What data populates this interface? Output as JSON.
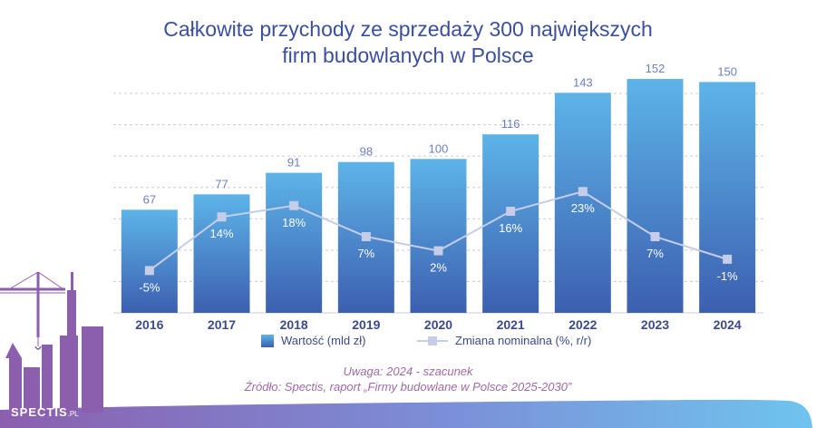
{
  "chart_data": {
    "type": "bar",
    "title_lines": [
      "Całkowite przychody ze sprzedaży 300 największych",
      "firm budowlanych w Polsce"
    ],
    "categories": [
      "2016",
      "2017",
      "2018",
      "2019",
      "2020",
      "2021",
      "2022",
      "2023",
      "2024"
    ],
    "series": [
      {
        "name": "Wartość (mld zł)",
        "type": "bar",
        "values": [
          67,
          77,
          91,
          98,
          100,
          116,
          143,
          152,
          150
        ],
        "labels": [
          "67",
          "77",
          "91",
          "98",
          "100",
          "116",
          "143",
          "152",
          "150"
        ],
        "color": "#4a7fcc"
      },
      {
        "name": "Zmiana nominalna (%, r/r)",
        "type": "line",
        "values": [
          -5,
          14,
          18,
          7,
          2,
          16,
          23,
          7,
          -1
        ],
        "labels": [
          "-5%",
          "14%",
          "18%",
          "7%",
          "2%",
          "16%",
          "23%",
          "7%",
          "-1%"
        ],
        "color": "#c5cde8"
      }
    ],
    "ylim": [
      0,
      165
    ],
    "line_ylim": [
      -20,
      70
    ],
    "grid": true,
    "legend_position": "bottom"
  },
  "note": "Uwaga: 2024 - szacunek",
  "source": "Źródło: Spectis, raport „Firmy budowlane w Polsce 2025-2030”",
  "brand": {
    "name": "SPECTIS",
    "suffix": ".PL"
  },
  "colors": {
    "title": "#3b4fa0",
    "bar_top": "#5db4e8",
    "bar_bottom": "#3c5fb0",
    "note": "#a06aa6",
    "wave": "#8b5fae"
  }
}
